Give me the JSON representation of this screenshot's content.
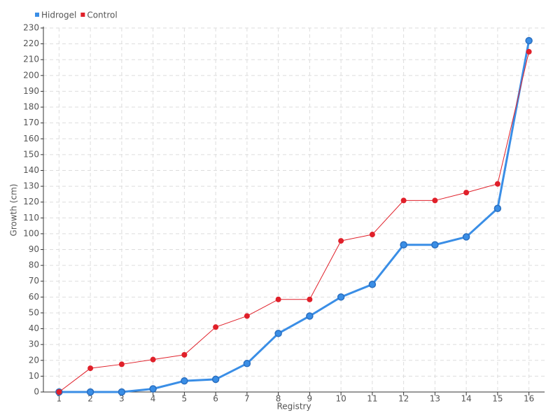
{
  "chart_data": {
    "type": "line",
    "x_label": "Registry",
    "y_label": "Growth (cm)",
    "categories": [
      "1",
      "2",
      "3",
      "4",
      "5",
      "6",
      "7",
      "8",
      "9",
      "10",
      "11",
      "12",
      "13",
      "14",
      "15",
      "16"
    ],
    "series": [
      {
        "name": "Hidrogel",
        "color": "#3a8ee6",
        "values": [
          0,
          0,
          0,
          2,
          7,
          8,
          18,
          37,
          48,
          60,
          68,
          93,
          93,
          98,
          116,
          222
        ]
      },
      {
        "name": "Control",
        "color": "#e0202a",
        "values": [
          0,
          15,
          17.5,
          20.5,
          23.5,
          41,
          48,
          58.5,
          58.5,
          95.5,
          99.5,
          121,
          121,
          126,
          131.5,
          215
        ]
      }
    ],
    "ylim": [
      0,
      230
    ],
    "yticks": [
      0,
      10,
      20,
      30,
      40,
      50,
      60,
      70,
      80,
      90,
      100,
      110,
      120,
      130,
      140,
      150,
      160,
      170,
      180,
      190,
      200,
      210,
      220,
      230
    ],
    "grid": true,
    "legend": "top-left"
  }
}
